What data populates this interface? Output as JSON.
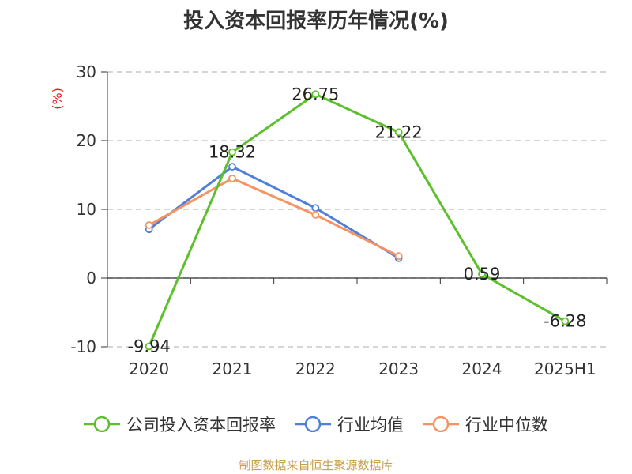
{
  "title": "投入资本回报率历年情况(%)",
  "source": "制图数据来自恒生聚源数据库",
  "chart_data": {
    "type": "line",
    "title": "投入资本回报率历年情况(%)",
    "ylabel": "(%)",
    "xlabel": "",
    "categories": [
      "2020",
      "2021",
      "2022",
      "2023",
      "2024",
      "2025H1"
    ],
    "ylim": [
      -10,
      30
    ],
    "yticks": [
      -10,
      0,
      10,
      20,
      30
    ],
    "grid": true,
    "legend_position": "bottom",
    "series": [
      {
        "name": "公司投入资本回报率",
        "color": "#5cc02c",
        "values": [
          -9.94,
          18.32,
          26.75,
          21.22,
          0.59,
          -6.28
        ],
        "labels": [
          "-9.94",
          "18.32",
          "26.75",
          "21.22",
          "0.59",
          "-6.28"
        ]
      },
      {
        "name": "行业均值",
        "color": "#4f7fdb",
        "values": [
          7.1,
          16.2,
          10.2,
          2.9,
          null,
          null
        ]
      },
      {
        "name": "行业中位数",
        "color": "#f59363",
        "values": [
          7.7,
          14.5,
          9.2,
          3.2,
          null,
          null
        ]
      }
    ]
  }
}
